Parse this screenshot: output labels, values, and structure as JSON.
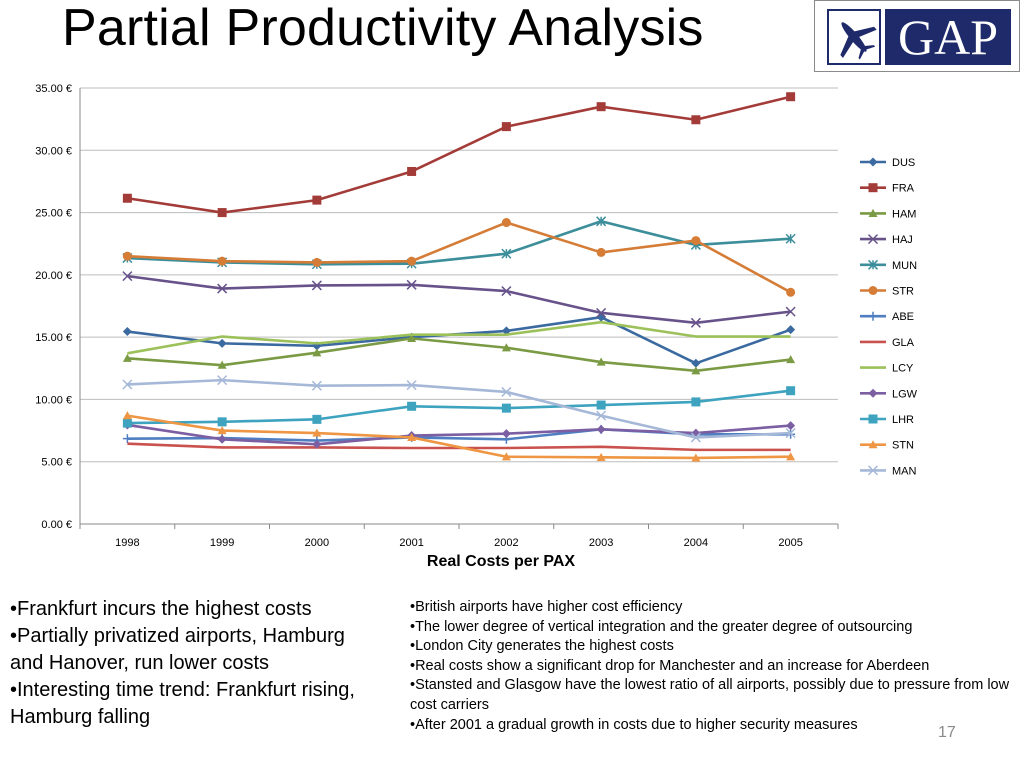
{
  "slide": {
    "title": "Partial Productivity Analysis",
    "page_number": "17"
  },
  "logo": {
    "text": "GAP",
    "icon": "airplane-icon",
    "color": "#1f2a6b"
  },
  "chart_data": {
    "type": "line",
    "title": "",
    "xlabel": "Real Costs per PAX",
    "ylabel": "",
    "x": [
      "1998",
      "1999",
      "2000",
      "2001",
      "2002",
      "2003",
      "2004",
      "2005"
    ],
    "ylim": [
      0,
      35
    ],
    "yticks": [
      "0.00 €",
      "5.00 €",
      "10.00 €",
      "15.00 €",
      "20.00 €",
      "25.00 €",
      "30.00 €",
      "35.00 €"
    ],
    "grid": true,
    "legend": "right",
    "series": [
      {
        "name": "DUS",
        "color": "#3b6aa0",
        "marker": "diamond",
        "values": [
          15.45,
          14.5,
          14.3,
          15.0,
          15.5,
          16.6,
          12.9,
          15.6
        ]
      },
      {
        "name": "FRA",
        "color": "#a33c38",
        "marker": "square",
        "values": [
          26.15,
          25.0,
          26.0,
          28.3,
          31.9,
          33.5,
          32.45,
          34.3
        ]
      },
      {
        "name": "HAM",
        "color": "#7b9a44",
        "marker": "triangle",
        "values": [
          13.3,
          12.75,
          13.75,
          14.9,
          14.15,
          13.0,
          12.3,
          13.2
        ]
      },
      {
        "name": "HAJ",
        "color": "#67528a",
        "marker": "x",
        "values": [
          19.9,
          18.9,
          19.15,
          19.2,
          18.7,
          16.95,
          16.15,
          17.05
        ]
      },
      {
        "name": "MUN",
        "color": "#3c8e9b",
        "marker": "star",
        "values": [
          21.35,
          21.0,
          20.85,
          20.9,
          21.7,
          24.3,
          22.4,
          22.9
        ]
      },
      {
        "name": "STR",
        "color": "#d57c36",
        "marker": "circle",
        "values": [
          21.5,
          21.1,
          21.0,
          21.1,
          24.2,
          21.8,
          22.75,
          18.6
        ]
      },
      {
        "name": "ABE",
        "color": "#4f7ec1",
        "marker": "plus",
        "values": [
          6.85,
          6.9,
          6.7,
          6.95,
          6.8,
          7.6,
          7.2,
          7.2
        ]
      },
      {
        "name": "GLA",
        "color": "#c9524e",
        "marker": "none",
        "values": [
          6.45,
          6.15,
          6.15,
          6.1,
          6.1,
          6.2,
          5.95,
          5.95
        ]
      },
      {
        "name": "LCY",
        "color": "#9cc15a",
        "marker": "none",
        "values": [
          13.7,
          15.05,
          14.5,
          15.2,
          15.2,
          16.2,
          15.05,
          15.05
        ]
      },
      {
        "name": "LGW",
        "color": "#7c5fa3",
        "marker": "diamond",
        "values": [
          7.95,
          6.8,
          6.4,
          7.1,
          7.25,
          7.6,
          7.3,
          7.9
        ]
      },
      {
        "name": "LHR",
        "color": "#3ea3bf",
        "marker": "square",
        "values": [
          8.1,
          8.2,
          8.4,
          9.45,
          9.3,
          9.55,
          9.8,
          10.7
        ]
      },
      {
        "name": "STN",
        "color": "#ee9643",
        "marker": "triangle",
        "values": [
          8.7,
          7.5,
          7.3,
          6.95,
          5.4,
          5.35,
          5.3,
          5.4
        ]
      },
      {
        "name": "MAN",
        "color": "#a6b8d8",
        "marker": "x",
        "values": [
          11.2,
          11.55,
          11.1,
          11.15,
          10.6,
          8.7,
          6.95,
          7.3
        ]
      }
    ]
  },
  "bullets_left": [
    "•Frankfurt incurs the highest costs",
    "•Partially privatized airports, Hamburg and Hanover, run lower costs",
    "•Interesting time trend: Frankfurt rising, Hamburg falling"
  ],
  "bullets_right": [
    "•British airports have higher cost efficiency",
    "•The lower degree of vertical integration and the greater degree of outsourcing",
    "•London City generates the highest costs",
    "•Real costs show a significant drop for Manchester and an increase for Aberdeen",
    "•Stansted and Glasgow have the lowest ratio of all airports, possibly due to pressure from low cost carriers",
    "•After 2001 a gradual growth in costs due to higher security measures"
  ]
}
